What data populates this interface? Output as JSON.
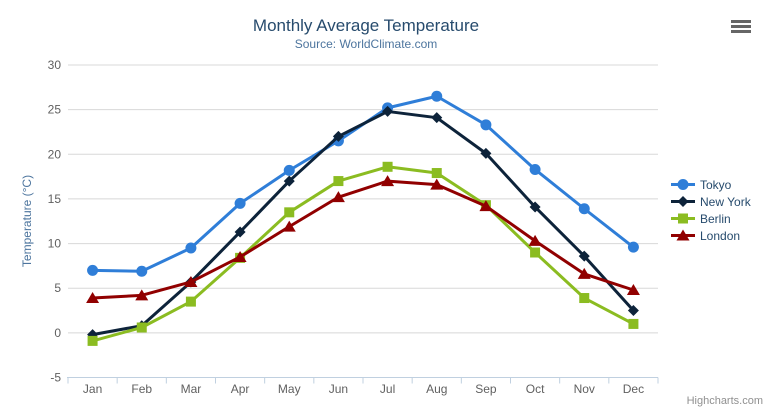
{
  "chart": {
    "credits_label": "Highcharts.com"
  },
  "chart_data": {
    "type": "line",
    "title": "Monthly Average Temperature",
    "subtitle": "Source: WorldClimate.com",
    "xlabel": "",
    "ylabel": "Temperature (°C)",
    "ylim": [
      -5,
      30
    ],
    "yticks": [
      -5,
      0,
      5,
      10,
      15,
      20,
      25,
      30
    ],
    "categories": [
      "Jan",
      "Feb",
      "Mar",
      "Apr",
      "May",
      "Jun",
      "Jul",
      "Aug",
      "Sep",
      "Oct",
      "Nov",
      "Dec"
    ],
    "grid": true,
    "legend_position": "right",
    "series": [
      {
        "name": "Tokyo",
        "color": "#2f7ed8",
        "marker": "circle",
        "values": [
          7.0,
          6.9,
          9.5,
          14.5,
          18.2,
          21.5,
          25.2,
          26.5,
          23.3,
          18.3,
          13.9,
          9.6
        ]
      },
      {
        "name": "New York",
        "color": "#0d233a",
        "marker": "diamond",
        "values": [
          -0.2,
          0.8,
          5.7,
          11.3,
          17.0,
          22.0,
          24.8,
          24.1,
          20.1,
          14.1,
          8.6,
          2.5
        ]
      },
      {
        "name": "Berlin",
        "color": "#8bbc21",
        "marker": "square",
        "values": [
          -0.9,
          0.6,
          3.5,
          8.4,
          13.5,
          17.0,
          18.6,
          17.9,
          14.3,
          9.0,
          3.9,
          1.0
        ]
      },
      {
        "name": "London",
        "color": "#910000",
        "marker": "triangle",
        "values": [
          3.9,
          4.2,
          5.7,
          8.5,
          11.9,
          15.2,
          17.0,
          16.6,
          14.2,
          10.3,
          6.6,
          4.8
        ]
      }
    ],
    "theme": {
      "background": "#ffffff",
      "title_color": "#274b6d",
      "subtitle_color": "#4d759e",
      "axis_title_color": "#4d759e",
      "tick_label_color": "#606060",
      "gridline_color": "#d8d8d8",
      "axis_line_color": "#c0d0e0",
      "legend_text_color": "#274b6d",
      "credits_color": "#909090"
    }
  }
}
